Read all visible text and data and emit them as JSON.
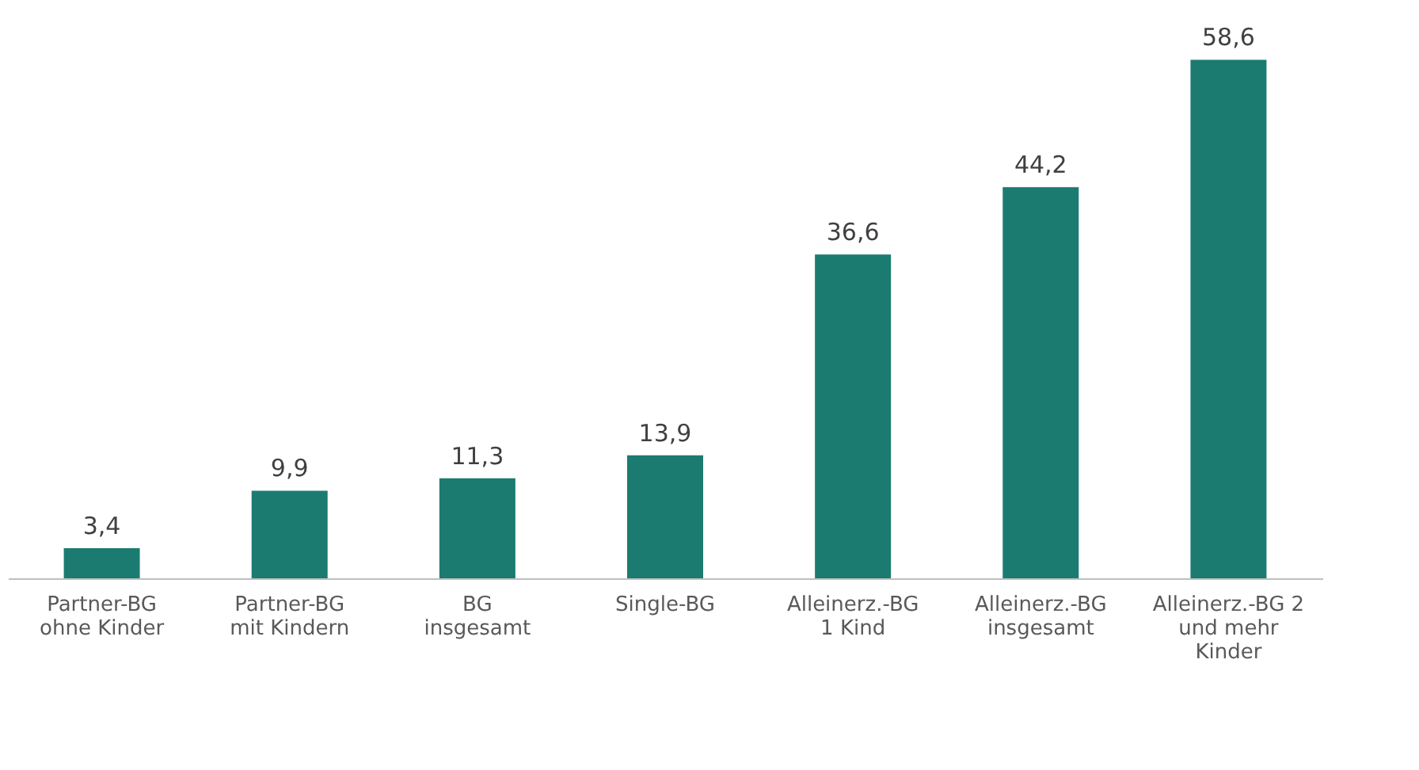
{
  "chart_data": {
    "type": "bar",
    "categories": [
      "Partner-BG\nohne Kinder",
      "Partner-BG\nmit Kindern",
      "BG\ninsgesamt",
      "Single-BG",
      "Alleinerz.-BG\n1 Kind",
      "Alleinerz.-BG\ninsgesamt",
      "Alleinerz.-BG 2\nund mehr\nKinder"
    ],
    "values": [
      3.4,
      9.9,
      11.3,
      13.9,
      36.6,
      44.2,
      58.6
    ],
    "value_labels": [
      "3,4",
      "9,9",
      "11,3",
      "13,9",
      "36,6",
      "44,2",
      "58,6"
    ],
    "color": "#1b7b70",
    "grid": false
  }
}
